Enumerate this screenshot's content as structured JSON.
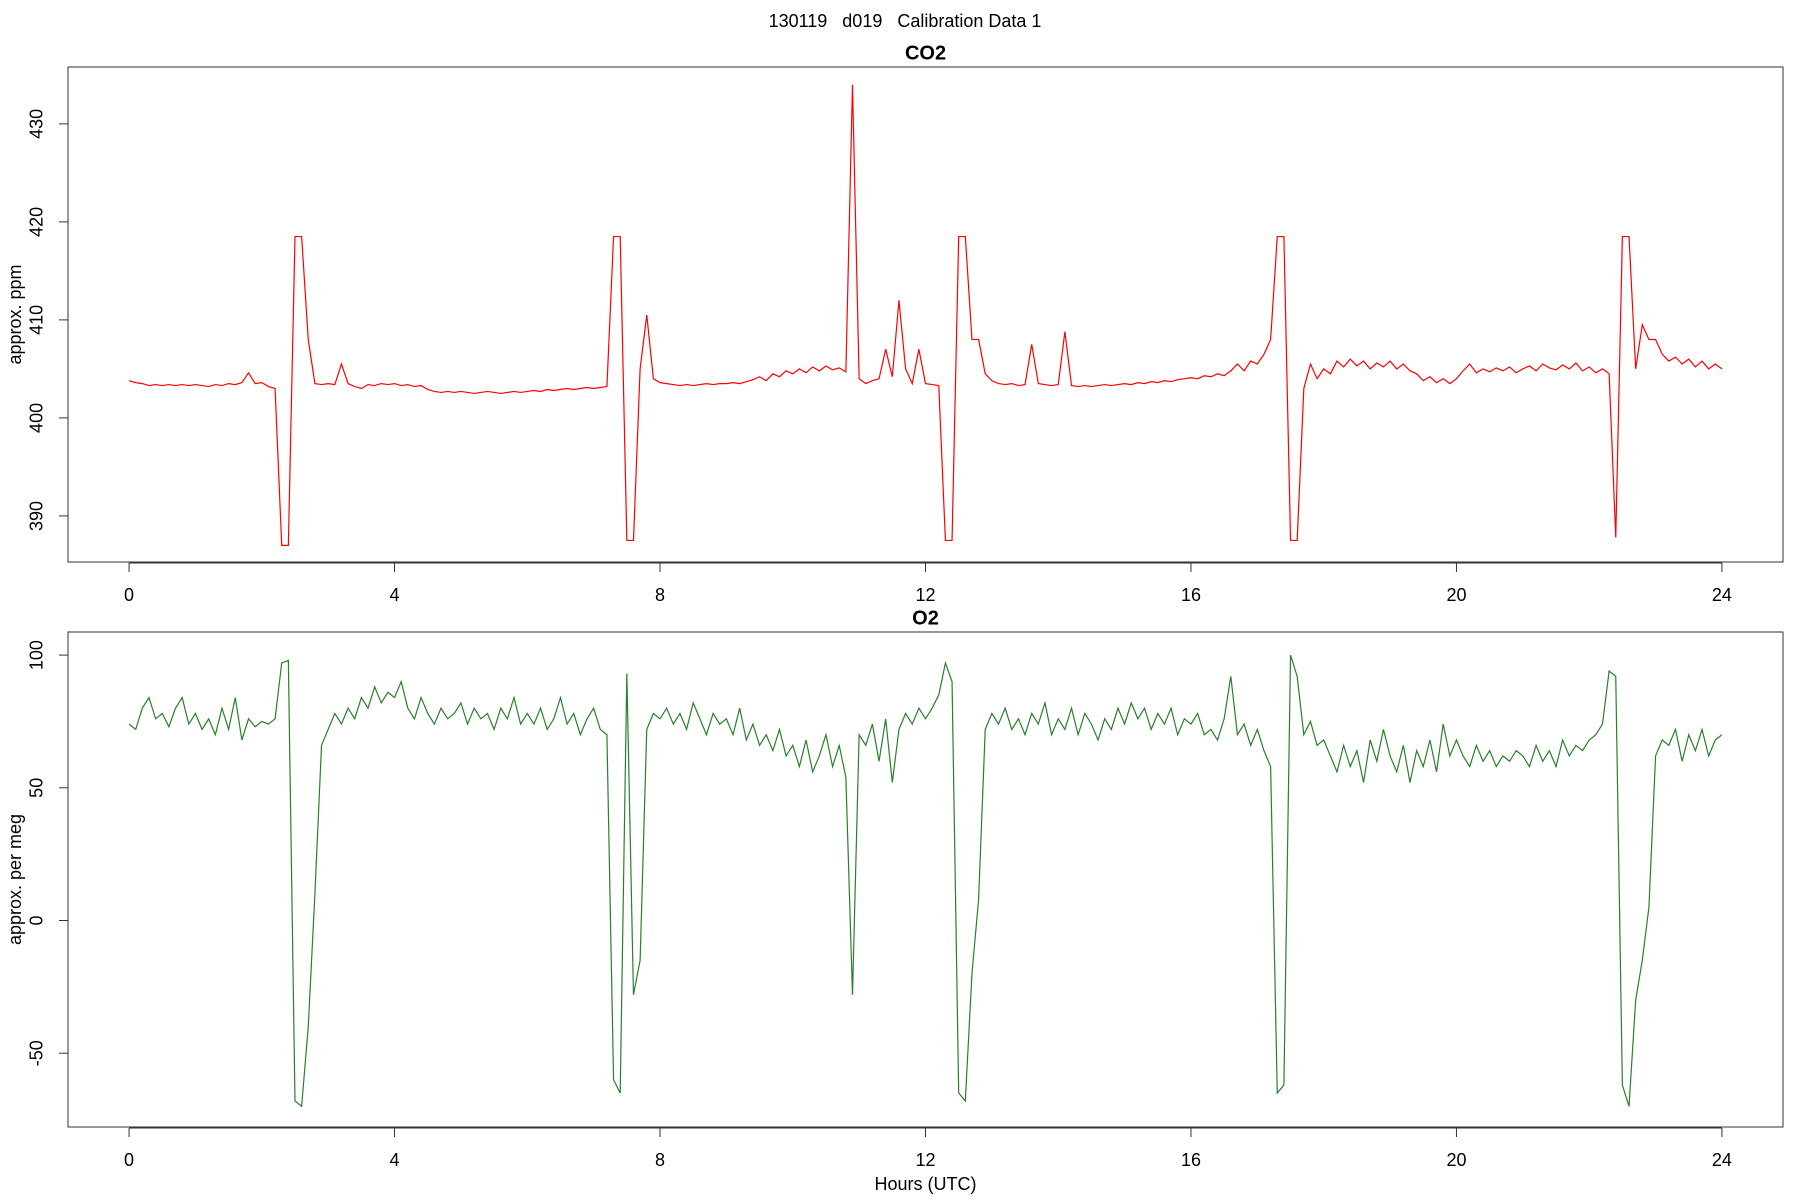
{
  "title": "130119   d019   Calibration Data 1",
  "chart_data": [
    {
      "type": "line",
      "title": "CO2",
      "ylabel": "approx. ppm",
      "color": "#ff0000",
      "xlim": [
        -0.92,
        24.92
      ],
      "xticks": [
        0,
        4,
        8,
        12,
        16,
        20,
        24
      ],
      "ylim": [
        385.3,
        435.8
      ],
      "yticks": [
        390,
        400,
        410,
        420,
        430
      ],
      "x": [
        0,
        0.1,
        0.2,
        0.3,
        0.4,
        0.5,
        0.6,
        0.7,
        0.8,
        0.9,
        1,
        1.1,
        1.2,
        1.3,
        1.4,
        1.5,
        1.6,
        1.7,
        1.8,
        1.9,
        2,
        2.1,
        2.2,
        2.3,
        2.4,
        2.5,
        2.6,
        2.7,
        2.8,
        2.9,
        3,
        3.1,
        3.2,
        3.3,
        3.4,
        3.5,
        3.6,
        3.7,
        3.8,
        3.9,
        4,
        4.1,
        4.2,
        4.3,
        4.4,
        4.5,
        4.6,
        4.7,
        4.8,
        4.9,
        5,
        5.1,
        5.2,
        5.3,
        5.4,
        5.5,
        5.6,
        5.7,
        5.8,
        5.9,
        6,
        6.1,
        6.2,
        6.3,
        6.4,
        6.5,
        6.6,
        6.7,
        6.8,
        6.9,
        7,
        7.1,
        7.2,
        7.3,
        7.4,
        7.5,
        7.6,
        7.7,
        7.8,
        7.9,
        8,
        8.1,
        8.2,
        8.3,
        8.4,
        8.5,
        8.6,
        8.7,
        8.8,
        8.9,
        9,
        9.1,
        9.2,
        9.3,
        9.4,
        9.5,
        9.6,
        9.7,
        9.8,
        9.9,
        10,
        10.1,
        10.2,
        10.3,
        10.4,
        10.5,
        10.6,
        10.7,
        10.8,
        10.9,
        11,
        11.1,
        11.2,
        11.3,
        11.4,
        11.5,
        11.6,
        11.7,
        11.8,
        11.9,
        12,
        12.1,
        12.2,
        12.3,
        12.4,
        12.5,
        12.6,
        12.7,
        12.8,
        12.9,
        13,
        13.1,
        13.2,
        13.3,
        13.4,
        13.5,
        13.6,
        13.7,
        13.8,
        13.9,
        14,
        14.1,
        14.2,
        14.3,
        14.4,
        14.5,
        14.6,
        14.7,
        14.8,
        14.9,
        15,
        15.1,
        15.2,
        15.3,
        15.4,
        15.5,
        15.6,
        15.7,
        15.8,
        15.9,
        16,
        16.1,
        16.2,
        16.3,
        16.4,
        16.5,
        16.6,
        16.7,
        16.8,
        16.9,
        17,
        17.1,
        17.2,
        17.3,
        17.4,
        17.5,
        17.6,
        17.7,
        17.8,
        17.9,
        18,
        18.1,
        18.2,
        18.3,
        18.4,
        18.5,
        18.6,
        18.7,
        18.8,
        18.9,
        19,
        19.1,
        19.2,
        19.3,
        19.4,
        19.5,
        19.6,
        19.7,
        19.8,
        19.9,
        20,
        20.1,
        20.2,
        20.3,
        20.4,
        20.5,
        20.6,
        20.7,
        20.8,
        20.9,
        21,
        21.1,
        21.2,
        21.3,
        21.4,
        21.5,
        21.6,
        21.7,
        21.8,
        21.9,
        22,
        22.1,
        22.2,
        22.3,
        22.4,
        22.5,
        22.6,
        22.7,
        22.8,
        22.9,
        23,
        23.1,
        23.2,
        23.3,
        23.4,
        23.5,
        23.6,
        23.7,
        23.8,
        23.9,
        24
      ],
      "values": [
        403.8,
        403.6,
        403.5,
        403.3,
        403.4,
        403.3,
        403.4,
        403.3,
        403.4,
        403.3,
        403.4,
        403.3,
        403.2,
        403.4,
        403.3,
        403.5,
        403.4,
        403.6,
        404.6,
        403.5,
        403.6,
        403.2,
        403.0,
        387.0,
        387.0,
        418.5,
        418.5,
        408.0,
        403.5,
        403.4,
        403.5,
        403.4,
        405.5,
        403.5,
        403.2,
        403.0,
        403.4,
        403.3,
        403.5,
        403.4,
        403.5,
        403.3,
        403.4,
        403.2,
        403.3,
        402.9,
        402.7,
        402.6,
        402.7,
        402.6,
        402.7,
        402.6,
        402.5,
        402.6,
        402.7,
        402.6,
        402.5,
        402.6,
        402.7,
        402.6,
        402.7,
        402.8,
        402.7,
        402.9,
        402.8,
        402.9,
        403.0,
        402.9,
        403.0,
        403.1,
        403.0,
        403.1,
        403.2,
        418.5,
        418.5,
        387.5,
        387.5,
        405.0,
        410.5,
        404.0,
        403.6,
        403.5,
        403.4,
        403.3,
        403.4,
        403.3,
        403.4,
        403.5,
        403.4,
        403.5,
        403.5,
        403.6,
        403.5,
        403.7,
        403.9,
        404.2,
        403.8,
        404.5,
        404.2,
        404.8,
        404.5,
        405.0,
        404.6,
        405.2,
        404.8,
        405.3,
        404.9,
        405.1,
        404.7,
        434.0,
        404.0,
        403.5,
        403.8,
        404.0,
        407.0,
        404.2,
        412.0,
        405.0,
        403.5,
        407.0,
        403.5,
        403.4,
        403.3,
        387.5,
        387.5,
        418.5,
        418.5,
        408.0,
        408.0,
        404.5,
        403.8,
        403.5,
        403.4,
        403.5,
        403.3,
        403.4,
        407.5,
        403.5,
        403.4,
        403.3,
        403.4,
        408.8,
        403.3,
        403.2,
        403.3,
        403.2,
        403.3,
        403.4,
        403.3,
        403.4,
        403.5,
        403.4,
        403.6,
        403.5,
        403.7,
        403.6,
        403.8,
        403.7,
        403.9,
        404.0,
        404.1,
        404.0,
        404.3,
        404.2,
        404.5,
        404.3,
        404.8,
        405.5,
        404.8,
        405.8,
        405.5,
        406.5,
        408.0,
        418.5,
        418.5,
        387.5,
        387.5,
        403.0,
        405.5,
        404.0,
        405.0,
        404.5,
        405.8,
        405.2,
        406.0,
        405.3,
        405.8,
        405.0,
        405.6,
        405.2,
        405.8,
        405.0,
        405.5,
        404.8,
        404.5,
        403.8,
        404.2,
        403.6,
        404.0,
        403.5,
        404.0,
        404.8,
        405.5,
        404.6,
        405.0,
        404.7,
        405.1,
        404.8,
        405.2,
        404.6,
        405.0,
        405.3,
        404.8,
        405.5,
        405.1,
        404.9,
        405.4,
        405.0,
        405.6,
        404.8,
        405.2,
        404.6,
        405.0,
        404.5,
        387.8,
        418.5,
        418.5,
        405.0,
        409.5,
        408.0,
        408.0,
        406.5,
        405.8,
        406.2,
        405.5,
        406.0,
        405.2,
        405.8,
        405.0,
        405.5,
        405.0
      ]
    },
    {
      "type": "line",
      "title": "O2",
      "ylabel": "approx. per meg",
      "xlabel": "Hours (UTC)",
      "color": "#2a7f2a",
      "xlim": [
        -0.92,
        24.92
      ],
      "xticks": [
        0,
        4,
        8,
        12,
        16,
        20,
        24
      ],
      "ylim": [
        -77.8,
        108.7
      ],
      "yticks": [
        -50,
        0,
        50,
        100
      ],
      "x": [
        0,
        0.1,
        0.2,
        0.3,
        0.4,
        0.5,
        0.6,
        0.7,
        0.8,
        0.9,
        1,
        1.1,
        1.2,
        1.3,
        1.4,
        1.5,
        1.6,
        1.7,
        1.8,
        1.9,
        2,
        2.1,
        2.2,
        2.3,
        2.4,
        2.5,
        2.6,
        2.7,
        2.8,
        2.9,
        3,
        3.1,
        3.2,
        3.3,
        3.4,
        3.5,
        3.6,
        3.7,
        3.8,
        3.9,
        4,
        4.1,
        4.2,
        4.3,
        4.4,
        4.5,
        4.6,
        4.7,
        4.8,
        4.9,
        5,
        5.1,
        5.2,
        5.3,
        5.4,
        5.5,
        5.6,
        5.7,
        5.8,
        5.9,
        6,
        6.1,
        6.2,
        6.3,
        6.4,
        6.5,
        6.6,
        6.7,
        6.8,
        6.9,
        7,
        7.1,
        7.2,
        7.3,
        7.4,
        7.5,
        7.6,
        7.7,
        7.8,
        7.9,
        8,
        8.1,
        8.2,
        8.3,
        8.4,
        8.5,
        8.6,
        8.7,
        8.8,
        8.9,
        9,
        9.1,
        9.2,
        9.3,
        9.4,
        9.5,
        9.6,
        9.7,
        9.8,
        9.9,
        10,
        10.1,
        10.2,
        10.3,
        10.4,
        10.5,
        10.6,
        10.7,
        10.8,
        10.9,
        11,
        11.1,
        11.2,
        11.3,
        11.4,
        11.5,
        11.6,
        11.7,
        11.8,
        11.9,
        12,
        12.1,
        12.2,
        12.3,
        12.4,
        12.5,
        12.6,
        12.7,
        12.8,
        12.9,
        13,
        13.1,
        13.2,
        13.3,
        13.4,
        13.5,
        13.6,
        13.7,
        13.8,
        13.9,
        14,
        14.1,
        14.2,
        14.3,
        14.4,
        14.5,
        14.6,
        14.7,
        14.8,
        14.9,
        15,
        15.1,
        15.2,
        15.3,
        15.4,
        15.5,
        15.6,
        15.7,
        15.8,
        15.9,
        16,
        16.1,
        16.2,
        16.3,
        16.4,
        16.5,
        16.6,
        16.7,
        16.8,
        16.9,
        17,
        17.1,
        17.2,
        17.3,
        17.4,
        17.5,
        17.6,
        17.7,
        17.8,
        17.9,
        18,
        18.1,
        18.2,
        18.3,
        18.4,
        18.5,
        18.6,
        18.7,
        18.8,
        18.9,
        19,
        19.1,
        19.2,
        19.3,
        19.4,
        19.5,
        19.6,
        19.7,
        19.8,
        19.9,
        20,
        20.1,
        20.2,
        20.3,
        20.4,
        20.5,
        20.6,
        20.7,
        20.8,
        20.9,
        21,
        21.1,
        21.2,
        21.3,
        21.4,
        21.5,
        21.6,
        21.7,
        21.8,
        21.9,
        22,
        22.1,
        22.2,
        22.3,
        22.4,
        22.5,
        22.6,
        22.7,
        22.8,
        22.9,
        23,
        23.1,
        23.2,
        23.3,
        23.4,
        23.5,
        23.6,
        23.7,
        23.8,
        23.9,
        24
      ],
      "values": [
        74,
        72,
        80,
        84,
        76,
        78,
        73,
        80,
        84,
        74,
        78,
        72,
        76,
        70,
        80,
        72,
        84,
        68,
        76,
        73,
        75,
        74,
        76,
        97,
        98,
        -68,
        -70,
        -40,
        10,
        66,
        72,
        78,
        74,
        80,
        76,
        84,
        80,
        88,
        82,
        86,
        84,
        90,
        80,
        76,
        84,
        78,
        74,
        80,
        76,
        78,
        82,
        74,
        80,
        76,
        78,
        72,
        80,
        76,
        84,
        74,
        78,
        74,
        80,
        72,
        76,
        84,
        74,
        78,
        70,
        76,
        80,
        72,
        70,
        -60,
        -65,
        93,
        -28,
        -15,
        72,
        78,
        76,
        80,
        74,
        78,
        72,
        82,
        76,
        70,
        78,
        74,
        76,
        70,
        80,
        68,
        74,
        66,
        70,
        64,
        72,
        62,
        66,
        58,
        68,
        56,
        62,
        70,
        58,
        66,
        54,
        -28,
        70,
        66,
        74,
        60,
        76,
        52,
        72,
        78,
        74,
        80,
        76,
        80,
        85,
        97,
        90,
        -65,
        -68,
        -20,
        8,
        72,
        78,
        74,
        80,
        72,
        76,
        70,
        78,
        74,
        82,
        70,
        76,
        72,
        80,
        70,
        78,
        74,
        68,
        76,
        72,
        80,
        74,
        82,
        76,
        80,
        72,
        78,
        74,
        80,
        70,
        76,
        74,
        78,
        70,
        72,
        68,
        76,
        92,
        70,
        74,
        66,
        72,
        64,
        58,
        -65,
        -62,
        100,
        92,
        70,
        75,
        66,
        68,
        62,
        56,
        66,
        58,
        64,
        52,
        68,
        60,
        72,
        62,
        56,
        66,
        52,
        64,
        58,
        68,
        56,
        74,
        62,
        68,
        62,
        58,
        66,
        60,
        64,
        58,
        62,
        60,
        64,
        62,
        58,
        66,
        60,
        64,
        58,
        68,
        62,
        66,
        64,
        68,
        70,
        74,
        94,
        92,
        -62,
        -70,
        -30,
        -15,
        5,
        62,
        68,
        66,
        72,
        60,
        70,
        64,
        72,
        62,
        68,
        70
      ]
    }
  ]
}
